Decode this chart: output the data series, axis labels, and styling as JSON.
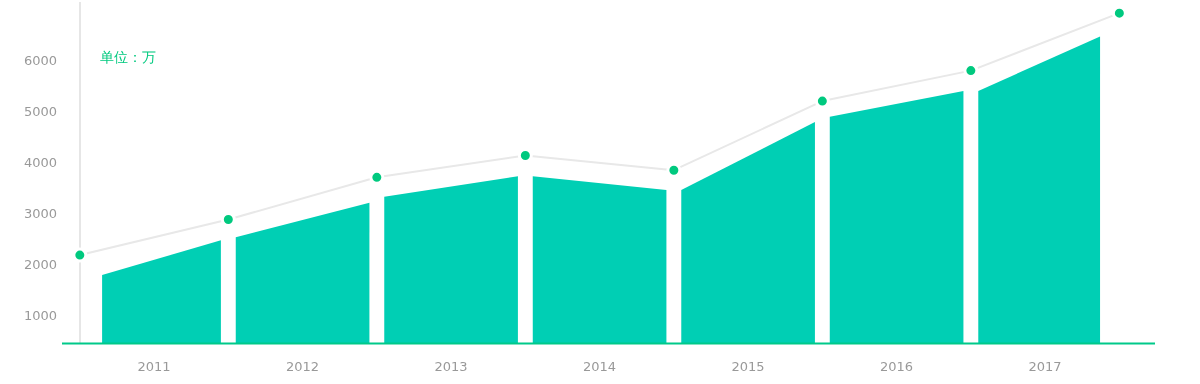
{
  "chart_data": {
    "type": "area",
    "annotations": [
      "单位：万"
    ],
    "xlim": [
      2010.38,
      2017.74
    ],
    "xticks": [
      2011,
      2012,
      2013,
      2014,
      2015,
      2016,
      2017
    ],
    "ylim": [
      440,
      7150
    ],
    "yticks": [
      1000,
      2000,
      3000,
      4000,
      5000,
      6000
    ],
    "grid": false,
    "series": [
      {
        "color": "#00cfb4",
        "x": [
          2010.65,
          2011.45
        ],
        "values": [
          1780,
          2460
        ]
      },
      {
        "color": "#00cfb4",
        "x": [
          2011.55,
          2012.45
        ],
        "values": [
          2520,
          3200
        ]
      },
      {
        "color": "#00cfb4",
        "x": [
          2012.55,
          2013.45
        ],
        "values": [
          3320,
          3720
        ]
      },
      {
        "color": "#00cfb4",
        "x": [
          2013.55,
          2014.45
        ],
        "values": [
          3720,
          3450
        ]
      },
      {
        "color": "#00cfb4",
        "x": [
          2014.55,
          2015.45
        ],
        "values": [
          3450,
          4790
        ]
      },
      {
        "color": "#00cfb4",
        "x": [
          2015.55,
          2016.45
        ],
        "values": [
          4890,
          5400
        ]
      },
      {
        "color": "#00cfb4",
        "x": [
          2016.55,
          2017.37
        ],
        "values": [
          5400,
          6470
        ]
      },
      {
        "type": "line",
        "color": "#e8e8e8",
        "x": [
          2010.5,
          2011.5,
          2012.5,
          2013.5,
          2014.5,
          2015.5,
          2016.5,
          2017.5
        ],
        "values": [
          2170,
          2870,
          3700,
          4130,
          3840,
          5200,
          5800,
          6930
        ]
      },
      {
        "type": "scatter",
        "color": "#00c97f",
        "marker": "circle",
        "x": [
          2010.5,
          2011.5,
          2012.5,
          2013.5,
          2014.5,
          2015.5,
          2016.5,
          2017.5
        ],
        "values": [
          2170,
          2870,
          3700,
          4130,
          3840,
          5200,
          5800,
          6930
        ]
      }
    ]
  }
}
